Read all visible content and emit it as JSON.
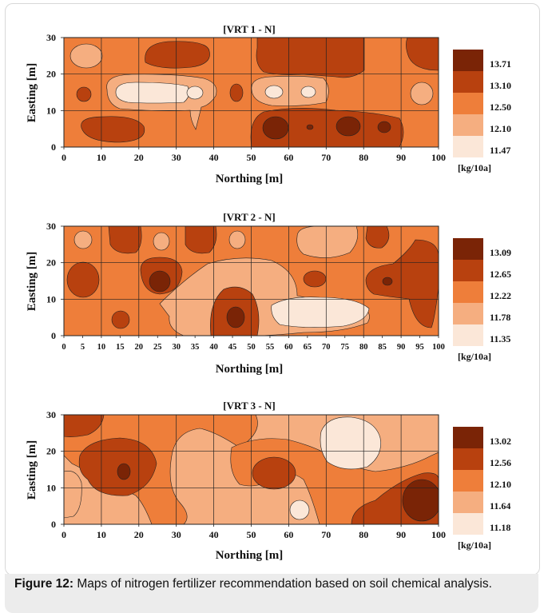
{
  "caption": {
    "label": "Figure 12:",
    "text": " Maps of nitrogen fertilizer recommendation based on soil chemical analysis."
  },
  "chart_data": [
    {
      "type": "contour",
      "title": "[VRT 1 - N]",
      "xlabel": "Northing [m]",
      "ylabel": "Easting [m]",
      "xlim": [
        0,
        100
      ],
      "ylim": [
        0,
        30
      ],
      "x_ticks": [
        "0",
        "10",
        "20",
        "30",
        "40",
        "50",
        "60",
        "70",
        "80",
        "90",
        "100"
      ],
      "y_ticks": [
        "0",
        "10",
        "20",
        "30"
      ],
      "grid": true,
      "legend_position": "right",
      "legend_unit": "[kg/10a]",
      "legend_levels": [
        "13.71",
        "13.10",
        "12.50",
        "12.10",
        "11.47"
      ],
      "legend_colors": [
        "#7a2406",
        "#b8410f",
        "#ee7e3a",
        "#f5ae80",
        "#fbe7d8"
      ],
      "background_color": "#ee7e3a"
    },
    {
      "type": "contour",
      "title": "[VRT 2 - N]",
      "xlabel": "Northing [m]",
      "ylabel": "Easting [m]",
      "xlim": [
        0,
        100
      ],
      "ylim": [
        0,
        30
      ],
      "x_ticks": [
        "0",
        "5",
        "10",
        "15",
        "20",
        "25",
        "30",
        "35",
        "40",
        "45",
        "50",
        "55",
        "60",
        "65",
        "70",
        "75",
        "80",
        "85",
        "90",
        "95",
        "100"
      ],
      "y_ticks": [
        "0",
        "10",
        "20",
        "30"
      ],
      "grid": true,
      "legend_position": "right",
      "legend_unit": "[kg/10a]",
      "legend_levels": [
        "13.09",
        "12.65",
        "12.22",
        "11.78",
        "11.35"
      ],
      "legend_colors": [
        "#7a2406",
        "#b8410f",
        "#ee7e3a",
        "#f5ae80",
        "#fbe7d8"
      ],
      "background_color": "#ee7e3a"
    },
    {
      "type": "contour",
      "title": "[VRT 3 - N]",
      "xlabel": "Northing [m]",
      "ylabel": "Easting [m]",
      "xlim": [
        0,
        100
      ],
      "ylim": [
        0,
        30
      ],
      "x_ticks": [
        "0",
        "10",
        "20",
        "30",
        "40",
        "50",
        "60",
        "70",
        "80",
        "90",
        "100"
      ],
      "y_ticks": [
        "0",
        "10",
        "20",
        "30"
      ],
      "grid": true,
      "legend_position": "right",
      "legend_unit": "[kg/10a]",
      "legend_levels": [
        "13.02",
        "12.56",
        "12.10",
        "11.64",
        "11.18"
      ],
      "legend_colors": [
        "#7a2406",
        "#b8410f",
        "#ee7e3a",
        "#f5ae80",
        "#fbe7d8"
      ],
      "background_color": "#f5ae80"
    }
  ]
}
